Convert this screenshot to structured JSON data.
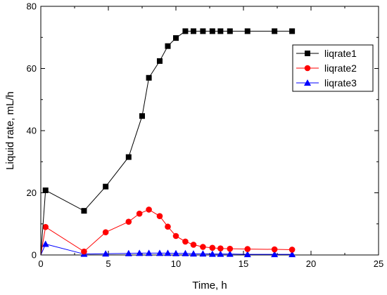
{
  "chart_data": {
    "type": "line",
    "title": "",
    "xlabel": "Time, h",
    "ylabel": "Liquid rate, mL/h",
    "xlim": [
      0,
      25
    ],
    "ylim": [
      0,
      80
    ],
    "xticks": [
      0,
      5,
      10,
      15,
      20,
      25
    ],
    "yticks": [
      0,
      20,
      40,
      60,
      80
    ],
    "grid": false,
    "legend_position": "top-right",
    "series": [
      {
        "name": "liqrate1",
        "color": "#000000",
        "marker": "square",
        "x": [
          0,
          0.35,
          3.2,
          4.8,
          6.5,
          7.5,
          8.0,
          8.8,
          9.4,
          10.0,
          10.7,
          11.3,
          12.0,
          12.7,
          13.3,
          14.0,
          15.3,
          17.3,
          18.6
        ],
        "y": [
          0,
          20.8,
          14.2,
          22.0,
          31.5,
          44.7,
          57.0,
          62.4,
          67.2,
          69.8,
          72.0,
          72.0,
          72.0,
          72.0,
          72.0,
          72.0,
          72.0,
          72.0,
          72.0
        ]
      },
      {
        "name": "liqrate2",
        "color": "#ff0000",
        "marker": "circle",
        "x": [
          0,
          0.35,
          3.2,
          4.8,
          6.5,
          7.3,
          8.0,
          8.8,
          9.4,
          10.0,
          10.7,
          11.3,
          12.0,
          12.7,
          13.3,
          14.0,
          15.3,
          17.3,
          18.6
        ],
        "y": [
          0,
          9.0,
          1.1,
          7.3,
          10.7,
          13.3,
          14.6,
          12.5,
          9.1,
          6.1,
          4.3,
          3.3,
          2.6,
          2.3,
          2.1,
          2.0,
          1.9,
          1.8,
          1.7
        ]
      },
      {
        "name": "liqrate3",
        "color": "#0000ff",
        "marker": "triangle",
        "x": [
          0,
          0.35,
          3.2,
          4.8,
          6.5,
          7.3,
          8.0,
          8.8,
          9.4,
          10.0,
          10.7,
          11.3,
          12.0,
          12.7,
          13.3,
          14.0,
          15.3,
          17.3,
          18.6
        ],
        "y": [
          0,
          3.5,
          0.3,
          0.4,
          0.5,
          0.6,
          0.6,
          0.6,
          0.6,
          0.5,
          0.5,
          0.4,
          0.4,
          0.3,
          0.3,
          0.3,
          0.2,
          0.2,
          0.2
        ]
      }
    ]
  }
}
